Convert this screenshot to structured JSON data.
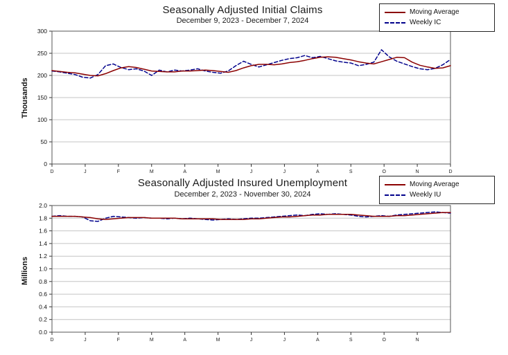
{
  "page": {
    "background": "#ffffff"
  },
  "chart_data": [
    {
      "type": "line",
      "title": "Seasonally Adjusted Initial Claims",
      "subtitle": "December 9, 2023 - December 7, 2024",
      "ylabel": "Thousands",
      "ylim": [
        0,
        300
      ],
      "ystep": 50,
      "y_ticks": [
        "0",
        "50",
        "100",
        "150",
        "200",
        "250",
        "300"
      ],
      "x_ticks": [
        "D",
        "J",
        "F",
        "M",
        "A",
        "M",
        "J",
        "J",
        "A",
        "S",
        "O",
        "N",
        "D"
      ],
      "grid": "horizontal",
      "legend_position": "top-right",
      "series": [
        {
          "name": "Moving Average",
          "color": "#8B0000",
          "style": "solid",
          "values": [
            211,
            209,
            207,
            206,
            203,
            200,
            199,
            204,
            211,
            217,
            220,
            218,
            214,
            210,
            209,
            208,
            208,
            210,
            210,
            211,
            212,
            211,
            209,
            207,
            211,
            217,
            222,
            225,
            225,
            224,
            226,
            229,
            231,
            234,
            238,
            241,
            242,
            241,
            238,
            235,
            231,
            228,
            226,
            231,
            236,
            241,
            240,
            230,
            223,
            219,
            216,
            217,
            222
          ]
        },
        {
          "name": "Weekly IC",
          "color": "#00008B",
          "style": "dashed",
          "values": [
            210,
            208,
            205,
            202,
            196,
            194,
            202,
            222,
            226,
            218,
            213,
            215,
            210,
            200,
            212,
            208,
            212,
            210,
            212,
            215,
            210,
            207,
            205,
            210,
            222,
            232,
            225,
            219,
            224,
            229,
            234,
            238,
            240,
            245,
            240,
            243,
            238,
            233,
            230,
            228,
            222,
            225,
            230,
            258,
            242,
            232,
            226,
            220,
            215,
            213,
            216,
            224,
            236
          ]
        }
      ]
    },
    {
      "type": "line",
      "title": "Seasonally Adjusted Insured Unemployment",
      "subtitle": "December 2, 2023 - November 30, 2024",
      "ylabel": "Millions",
      "ylim": [
        0.0,
        2.0
      ],
      "ystep": 0.2,
      "y_ticks": [
        "0.0",
        "0.2",
        "0.4",
        "0.6",
        "0.8",
        "1.0",
        "1.2",
        "1.4",
        "1.6",
        "1.8",
        "2.0"
      ],
      "x_ticks": [
        "D",
        "J",
        "F",
        "M",
        "A",
        "M",
        "J",
        "J",
        "A",
        "S",
        "O",
        "N"
      ],
      "grid": "horizontal",
      "legend_position": "top-right",
      "series": [
        {
          "name": "Moving Average",
          "color": "#8B0000",
          "style": "solid",
          "values": [
            1.83,
            1.83,
            1.83,
            1.83,
            1.82,
            1.81,
            1.79,
            1.78,
            1.79,
            1.8,
            1.81,
            1.81,
            1.81,
            1.8,
            1.8,
            1.8,
            1.8,
            1.79,
            1.79,
            1.79,
            1.79,
            1.79,
            1.78,
            1.78,
            1.78,
            1.78,
            1.79,
            1.79,
            1.8,
            1.81,
            1.82,
            1.82,
            1.83,
            1.84,
            1.85,
            1.85,
            1.86,
            1.86,
            1.86,
            1.86,
            1.85,
            1.84,
            1.83,
            1.83,
            1.83,
            1.84,
            1.84,
            1.85,
            1.86,
            1.87,
            1.88,
            1.89,
            1.89
          ]
        },
        {
          "name": "Weekly IU",
          "color": "#00008B",
          "style": "dashed",
          "values": [
            1.83,
            1.84,
            1.83,
            1.83,
            1.82,
            1.76,
            1.75,
            1.8,
            1.83,
            1.82,
            1.81,
            1.8,
            1.81,
            1.8,
            1.8,
            1.79,
            1.8,
            1.79,
            1.8,
            1.79,
            1.78,
            1.77,
            1.78,
            1.79,
            1.78,
            1.79,
            1.8,
            1.8,
            1.81,
            1.82,
            1.83,
            1.84,
            1.85,
            1.84,
            1.86,
            1.87,
            1.86,
            1.87,
            1.86,
            1.85,
            1.83,
            1.82,
            1.83,
            1.84,
            1.83,
            1.85,
            1.86,
            1.87,
            1.88,
            1.89,
            1.9,
            1.89,
            1.88
          ]
        }
      ]
    }
  ]
}
